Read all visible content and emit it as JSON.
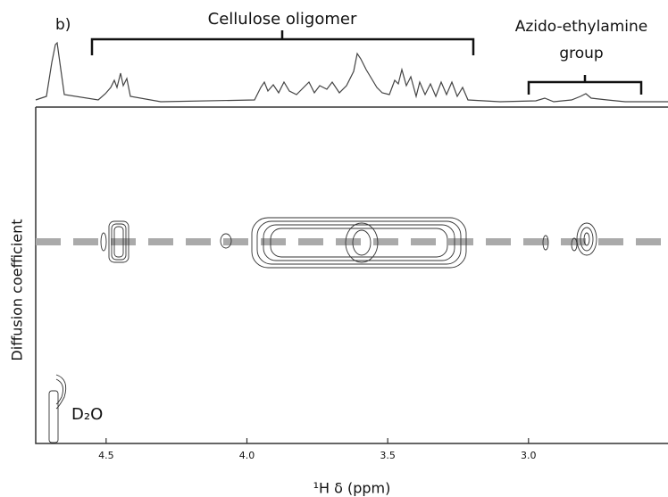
{
  "chart_data": {
    "type": "nmr-dosy",
    "panel_label": "b)",
    "annotations": [
      "Cellulose oligomer",
      "Azido-ethylamine",
      "group"
    ],
    "peak_label": "D₂O",
    "x_label": "¹H δ (ppm)",
    "y_label": "Diffusion coefficient",
    "xlim": [
      4.75,
      2.53
    ],
    "xticks": [
      4.5,
      {
        "value": 4,
        "label": "4.0"
      },
      3.5,
      {
        "value": 3,
        "label": "3.0"
      }
    ]
  }
}
